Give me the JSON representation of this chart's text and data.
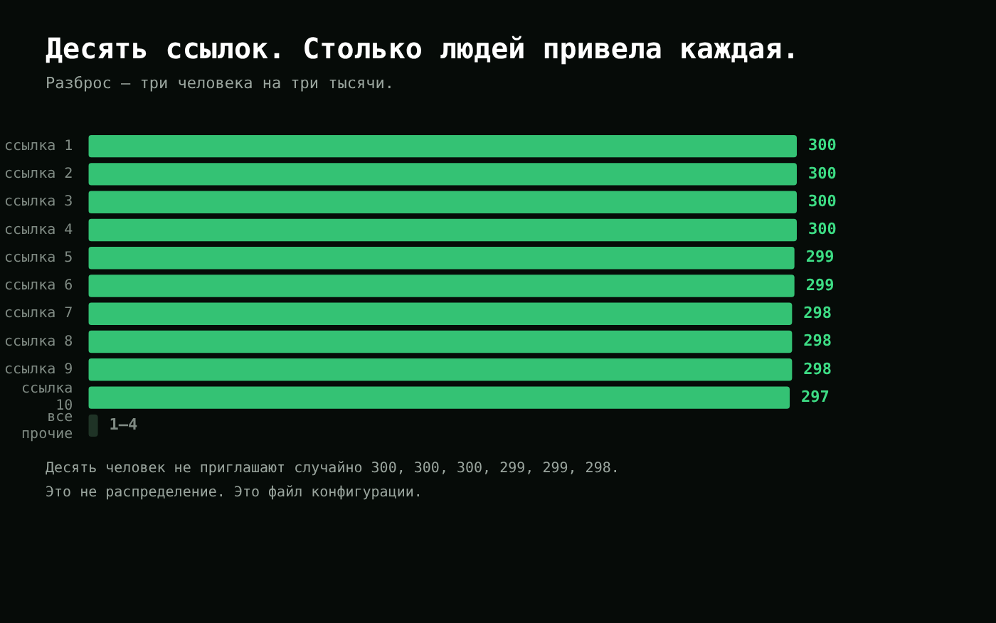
{
  "chart_data": {
    "type": "bar",
    "orientation": "horizontal",
    "title": "Десять ссылок. Столько людей привела каждая.",
    "subtitle": "Разброс — три человека на три тысячи.",
    "categories": [
      "ссылка 1",
      "ссылка 2",
      "ссылка 3",
      "ссылка 4",
      "ссылка 5",
      "ссылка 6",
      "ссылка 7",
      "ссылка 8",
      "ссылка 9",
      "ссылка 10",
      "все прочие"
    ],
    "values": [
      300,
      300,
      300,
      300,
      299,
      299,
      298,
      298,
      298,
      297,
      4
    ],
    "colors": [
      "#34c274",
      "#34c274",
      "#34c274",
      "#34c274",
      "#34c274",
      "#34c274",
      "#34c274",
      "#34c274",
      "#34c274",
      "#34c274",
      "#1f3326"
    ],
    "data_labels": true,
    "value_labels": [
      "300",
      "300",
      "300",
      "300",
      "299",
      "299",
      "298",
      "298",
      "298",
      "297",
      "1–4"
    ],
    "legend": false,
    "annotations": [
      "Десять человек не приглашают случайно 300, 300, 300, 299, 299, 298.",
      "Это не распределение. Это файл конфигурации."
    ]
  }
}
